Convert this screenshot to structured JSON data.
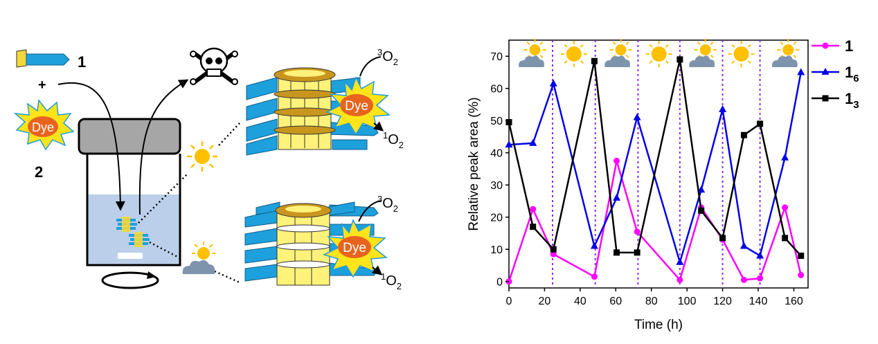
{
  "scheme": {
    "compound_1_label": "1",
    "plus_sign": "+",
    "dye_label": "Dye",
    "compound_2_label": "2",
    "oxygen_triplet_top": {
      "sup": "3",
      "base": "O",
      "sub": "2"
    },
    "oxygen_singlet_top": {
      "sup": "1",
      "base": "O",
      "sub": "2"
    },
    "oxygen_triplet_bottom": {
      "sup": "3",
      "base": "O",
      "sub": "2"
    },
    "oxygen_singlet_bottom": {
      "sup": "1",
      "base": "O",
      "sub": "2"
    },
    "colors": {
      "peptide_blue": "#1ea0dc",
      "ring_yellow": "#fff27a",
      "ring_gold": "#c8961e",
      "dye_orange": "#e8641e",
      "burst_yellow": "#ffe41a",
      "burst_edge": "#1e9be0",
      "liquid": "#bccfea",
      "cap_gray": "#a6a6a6",
      "cloud": "#7e94ad",
      "sun": "#ffc000"
    }
  },
  "chart_data": {
    "type": "line",
    "xlabel": "Time (h)",
    "ylabel": "Relative peak area (%)",
    "xlim": [
      0,
      168
    ],
    "ylim": [
      -2,
      75
    ],
    "xticks": [
      0,
      20,
      40,
      60,
      80,
      100,
      120,
      140,
      160
    ],
    "yticks": [
      0,
      10,
      20,
      30,
      40,
      50,
      60,
      70
    ],
    "vlines": [
      24.5,
      48.5,
      72.5,
      96,
      120,
      141
    ],
    "vline_color": "#8b2be2",
    "light_conditions": [
      "sun-cloud",
      "sun",
      "sun-cloud",
      "sun",
      "sun-cloud",
      "sun",
      "sun-cloud"
    ],
    "legend_position": "top-right",
    "series": [
      {
        "name": "1",
        "name_sub": "",
        "color": "#ff00ff",
        "marker": "circle",
        "x": [
          0,
          13.5,
          25,
          48,
          60.5,
          72,
          96,
          108,
          120,
          132,
          141,
          155,
          164
        ],
        "y": [
          0,
          22.5,
          8.5,
          1.5,
          37.5,
          15.5,
          0.5,
          23,
          13,
          0.5,
          1,
          23,
          2
        ]
      },
      {
        "name": "1",
        "name_sub": "6",
        "color": "#0000e6",
        "marker": "triangle",
        "x": [
          0,
          13.5,
          25,
          48,
          60.5,
          72,
          96,
          108,
          120,
          132,
          141,
          155,
          164
        ],
        "y": [
          42.5,
          43,
          61.5,
          11,
          26,
          51,
          6,
          28.5,
          53.5,
          11,
          8,
          38.5,
          65
        ]
      },
      {
        "name": "1",
        "name_sub": "3",
        "color": "#000000",
        "marker": "square",
        "x": [
          0,
          13.5,
          25,
          48,
          60.5,
          72,
          96,
          108,
          120,
          132,
          141,
          155,
          164
        ],
        "y": [
          49.5,
          17,
          10,
          68.5,
          9,
          9,
          69,
          22,
          13.5,
          45.5,
          49,
          13.5,
          8
        ]
      }
    ]
  }
}
